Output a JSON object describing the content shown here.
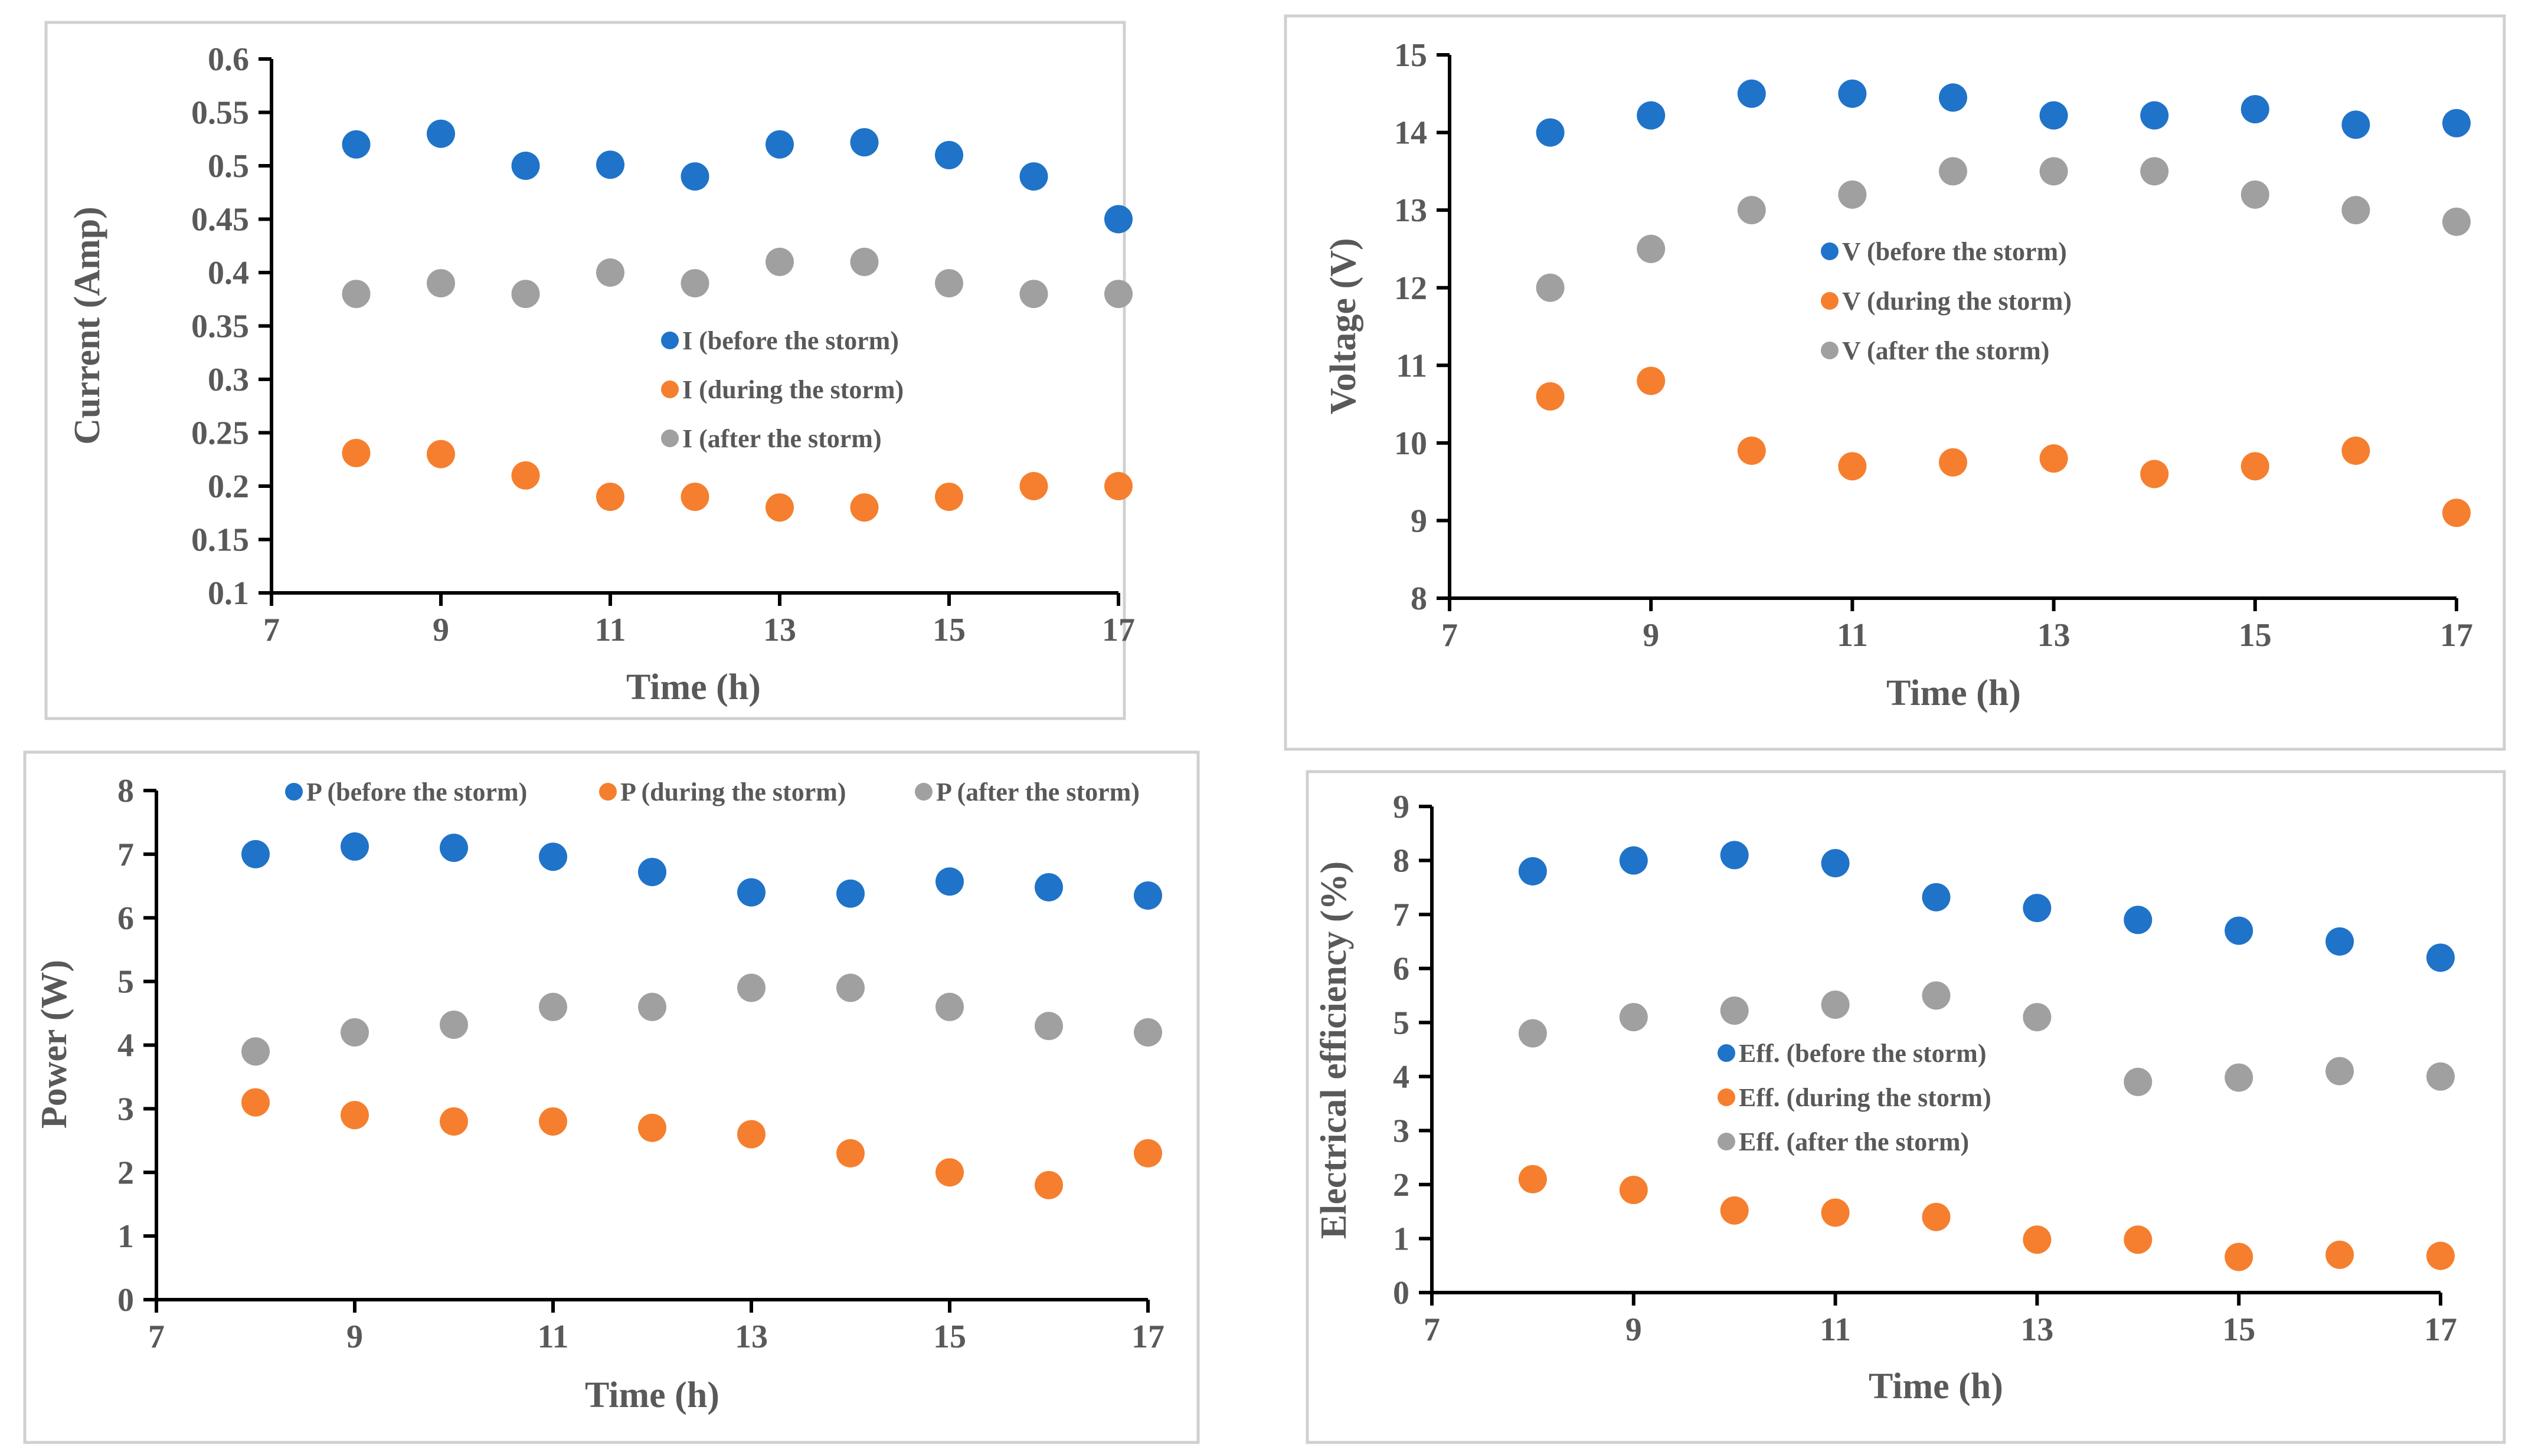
{
  "colors": {
    "before": "#1f73c9",
    "during": "#f57f2e",
    "after": "#a0a0a0",
    "text": "#595959",
    "frame": "#d0d0d0"
  },
  "chart_data": [
    {
      "id": "current",
      "type": "scatter",
      "xlabel": "Time (h)",
      "ylabel": "Current (Amp)",
      "xlim": [
        7,
        17
      ],
      "ylim": [
        0.1,
        0.6
      ],
      "xticks": [
        "7",
        "9",
        "11",
        "13",
        "15",
        "17"
      ],
      "yticks": [
        "0.1",
        "0.15",
        "0.2",
        "0.25",
        "0.3",
        "0.35",
        "0.4",
        "0.45",
        "0.5",
        "0.55",
        "0.6"
      ],
      "legend_position": "center",
      "x": [
        8,
        9,
        10,
        11,
        12,
        13,
        14,
        15,
        16,
        17
      ],
      "series": [
        {
          "key": "before",
          "name": "I (before the storm)",
          "values": [
            0.52,
            0.53,
            0.5,
            0.501,
            0.49,
            0.52,
            0.522,
            0.51,
            0.49,
            0.45
          ]
        },
        {
          "key": "during",
          "name": "I (during the storm)",
          "values": [
            0.231,
            0.23,
            0.21,
            0.19,
            0.19,
            0.18,
            0.18,
            0.19,
            0.2,
            0.2
          ]
        },
        {
          "key": "after",
          "name": "I (after the storm)",
          "values": [
            0.38,
            0.39,
            0.38,
            0.4,
            0.39,
            0.41,
            0.41,
            0.39,
            0.38,
            0.38
          ]
        }
      ]
    },
    {
      "id": "voltage",
      "type": "scatter",
      "xlabel": "Time (h)",
      "ylabel": "Voltage (V)",
      "xlim": [
        7,
        17
      ],
      "ylim": [
        8,
        15
      ],
      "xticks": [
        "7",
        "9",
        "11",
        "13",
        "15",
        "17"
      ],
      "yticks": [
        "8",
        "9",
        "10",
        "11",
        "12",
        "13",
        "14",
        "15"
      ],
      "legend_position": "center",
      "x": [
        8,
        9,
        10,
        11,
        12,
        13,
        14,
        15,
        16,
        17
      ],
      "series": [
        {
          "key": "before",
          "name": "V (before the storm)",
          "values": [
            14.0,
            14.22,
            14.5,
            14.5,
            14.45,
            14.22,
            14.22,
            14.3,
            14.1,
            14.12
          ]
        },
        {
          "key": "during",
          "name": "V (during the storm)",
          "values": [
            10.6,
            10.8,
            9.9,
            9.7,
            9.75,
            9.8,
            9.6,
            9.7,
            9.9,
            9.1
          ]
        },
        {
          "key": "after",
          "name": "V (after the storm)",
          "values": [
            12.0,
            12.5,
            13.0,
            13.2,
            13.5,
            13.5,
            13.5,
            13.2,
            13.0,
            12.85
          ]
        }
      ]
    },
    {
      "id": "power",
      "type": "scatter",
      "xlabel": "Time (h)",
      "ylabel": "Power (W)",
      "xlim": [
        7,
        17
      ],
      "ylim": [
        0,
        8
      ],
      "xticks": [
        "7",
        "9",
        "11",
        "13",
        "15",
        "17"
      ],
      "yticks": [
        "0",
        "1",
        "2",
        "3",
        "4",
        "5",
        "6",
        "7",
        "8"
      ],
      "legend_position": "top",
      "x": [
        8,
        9,
        10,
        11,
        12,
        13,
        14,
        15,
        16,
        17
      ],
      "series": [
        {
          "key": "before",
          "name": "P (before the storm)",
          "values": [
            7.0,
            7.12,
            7.1,
            6.96,
            6.72,
            6.4,
            6.38,
            6.57,
            6.48,
            6.35
          ]
        },
        {
          "key": "during",
          "name": "P (during the storm)",
          "values": [
            3.1,
            2.9,
            2.8,
            2.8,
            2.7,
            2.6,
            2.3,
            2.0,
            1.8,
            2.3
          ]
        },
        {
          "key": "after",
          "name": "P (after the storm)",
          "values": [
            3.9,
            4.2,
            4.32,
            4.6,
            4.6,
            4.9,
            4.9,
            4.6,
            4.3,
            4.2
          ]
        }
      ]
    },
    {
      "id": "efficiency",
      "type": "scatter",
      "xlabel": "Time (h)",
      "ylabel": "Electrical efficiency (%)",
      "xlim": [
        7,
        17
      ],
      "ylim": [
        0,
        9
      ],
      "xticks": [
        "7",
        "9",
        "11",
        "13",
        "15",
        "17"
      ],
      "yticks": [
        "0",
        "1",
        "2",
        "3",
        "4",
        "5",
        "6",
        "7",
        "8",
        "9"
      ],
      "legend_position": "center",
      "x": [
        8,
        9,
        10,
        11,
        12,
        13,
        14,
        15,
        16,
        17
      ],
      "series": [
        {
          "key": "before",
          "name": "Eff. (before the storm)",
          "values": [
            7.8,
            8.0,
            8.1,
            7.95,
            7.32,
            7.12,
            6.9,
            6.7,
            6.5,
            6.2
          ]
        },
        {
          "key": "during",
          "name": "Eff. (during the storm)",
          "values": [
            2.1,
            1.9,
            1.52,
            1.48,
            1.4,
            0.98,
            0.98,
            0.66,
            0.7,
            0.68
          ]
        },
        {
          "key": "after",
          "name": "Eff. (after the storm)",
          "values": [
            4.8,
            5.1,
            5.22,
            5.33,
            5.5,
            5.1,
            3.9,
            3.98,
            4.1,
            4.0
          ]
        }
      ]
    }
  ]
}
